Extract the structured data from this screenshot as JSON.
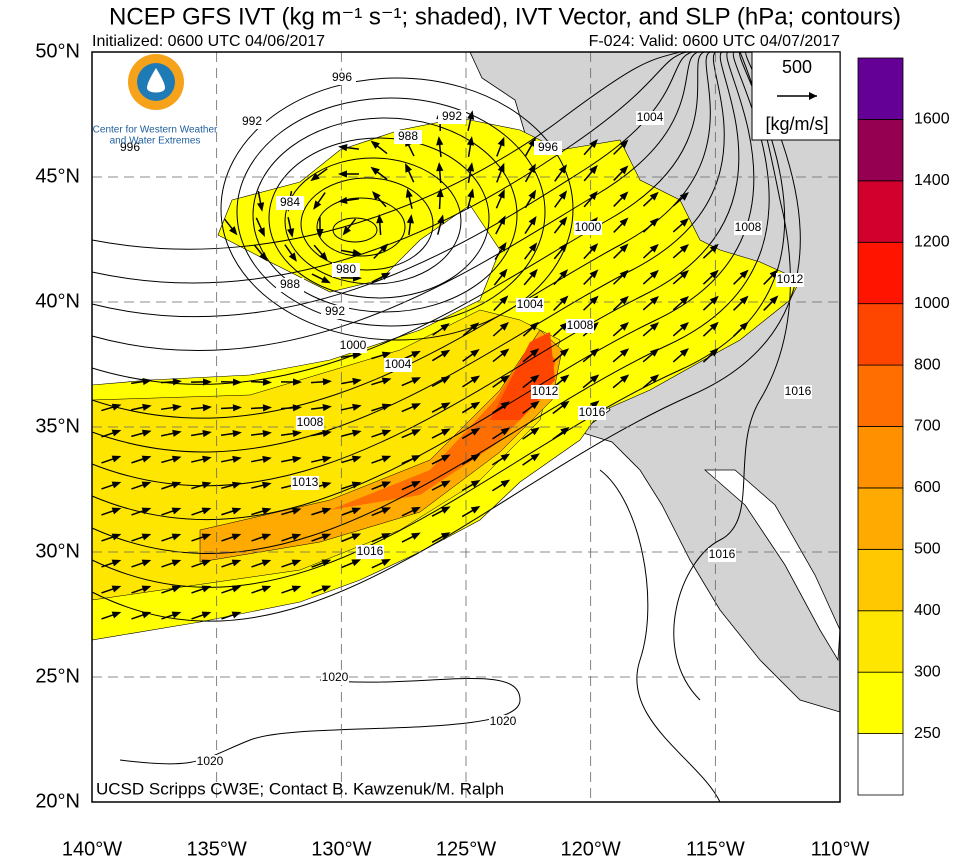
{
  "title": "NCEP GFS IVT (kg m⁻¹ s⁻¹; shaded), IVT Vector, and SLP (hPa; contours)",
  "initialized": "Initialized: 0600 UTC 04/06/2017",
  "valid": "F-024: Valid: 0600 UTC 04/07/2017",
  "logo_text": [
    "Center for Western Weather",
    "and Water Extremes"
  ],
  "credit": "UCSD Scripps CW3E; Contact B. Kawzenuk/M. Ralph",
  "vector_key": {
    "value": 500,
    "unit": "[kg/m/s]"
  },
  "lat_range": [
    20,
    50
  ],
  "latitudes": [
    {
      "value": 50,
      "label": "50°N"
    },
    {
      "value": 45,
      "label": "45°N"
    },
    {
      "value": 40,
      "label": "40°N"
    },
    {
      "value": 35,
      "label": "35°N"
    },
    {
      "value": 30,
      "label": "30°N"
    },
    {
      "value": 25,
      "label": "25°N"
    },
    {
      "value": 20,
      "label": "20°N"
    }
  ],
  "lon_range": [
    -140,
    -110
  ],
  "longitudes": [
    {
      "value": -140,
      "label": "140°W"
    },
    {
      "value": -135,
      "label": "135°W"
    },
    {
      "value": -130,
      "label": "130°W"
    },
    {
      "value": -125,
      "label": "125°W"
    },
    {
      "value": -120,
      "label": "120°W"
    },
    {
      "value": -115,
      "label": "115°W"
    },
    {
      "value": -110,
      "label": "110°W"
    }
  ],
  "colorbar": {
    "levels": [
      250,
      300,
      400,
      500,
      600,
      700,
      800,
      1000,
      1200,
      1400,
      1600
    ],
    "colors": [
      "#ffffff",
      "#ffff00",
      "#ffe600",
      "#ffc800",
      "#ffaa00",
      "#ff9100",
      "#ff6e00",
      "#ff4600",
      "#ff1400",
      "#d2002d",
      "#960050",
      "#640096"
    ]
  },
  "slp_labels": [
    "996",
    "992",
    "996",
    "984",
    "988",
    "980",
    "988",
    "992",
    "1000",
    "1004",
    "1008",
    "1013",
    "1016",
    "1020",
    "1020",
    "1020",
    "992",
    "996",
    "1004",
    "1000",
    "1004",
    "1008",
    "1008",
    "1012",
    "1012",
    "1016",
    "1016",
    "1016"
  ]
}
